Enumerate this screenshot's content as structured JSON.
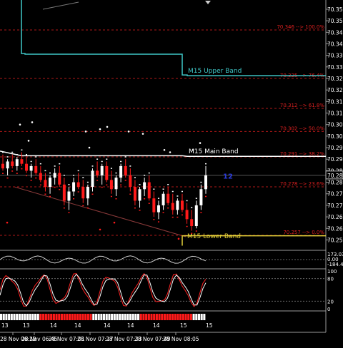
{
  "chart_data": {
    "type": "candlestick",
    "title": "",
    "price_axis": {
      "range": [
        70.2505,
        70.359
      ],
      "ticks": [
        "70.355",
        "70.350",
        "70.345",
        "70.340",
        "70.335",
        "70.330",
        "70.325",
        "70.320",
        "70.315",
        "70.310",
        "70.305",
        "70.300",
        "70.295",
        "70.290",
        "70.285",
        "70.280",
        "70.275",
        "70.270",
        "70.265",
        "70.260",
        "70.255"
      ],
      "current_price": "70.283"
    },
    "time_axis": {
      "labels": [
        "28 Nov 06:29",
        "28 Nov 06:45",
        "28 Nov 07:01",
        "28 Nov 07:17",
        "28 Nov 07:33",
        "28 Nov 07:49",
        "28 Nov 08:05"
      ]
    },
    "hour_labels": [
      "13",
      "13",
      "14",
      "14",
      "14",
      "14",
      "14",
      "15",
      "15"
    ],
    "countdown": "12",
    "bands": [
      {
        "label": "M15 Upper Band",
        "color": "#3fc7c7"
      },
      {
        "label": "M15 Main Band",
        "color": "#ffffff"
      },
      {
        "label": "M15 Lower Band",
        "color": "#e6d23a"
      }
    ],
    "fib_levels": [
      {
        "price": 70.346,
        "label": "70.346 --> 100.0%"
      },
      {
        "price": 70.325,
        "label": "70.325 --> 76.4%"
      },
      {
        "price": 70.312,
        "label": "70.312 --> 61.8%"
      },
      {
        "price": 70.302,
        "label": "70.302 --> 50.0%"
      },
      {
        "price": 70.291,
        "label": "70.291 --> 38.2%"
      },
      {
        "price": 70.278,
        "label": "70.278 --> 23.6%"
      },
      {
        "price": 70.257,
        "label": "70.257 --> 0.0%"
      }
    ],
    "candles": [
      {
        "o": 70.288,
        "h": 70.292,
        "l": 70.285,
        "c": 70.286
      },
      {
        "o": 70.286,
        "h": 70.29,
        "l": 70.283,
        "c": 70.289
      },
      {
        "o": 70.289,
        "h": 70.292,
        "l": 70.286,
        "c": 70.287
      },
      {
        "o": 70.287,
        "h": 70.291,
        "l": 70.285,
        "c": 70.29
      },
      {
        "o": 70.29,
        "h": 70.293,
        "l": 70.287,
        "c": 70.288
      },
      {
        "o": 70.288,
        "h": 70.291,
        "l": 70.284,
        "c": 70.285
      },
      {
        "o": 70.285,
        "h": 70.288,
        "l": 70.282,
        "c": 70.287
      },
      {
        "o": 70.287,
        "h": 70.29,
        "l": 70.283,
        "c": 70.284
      },
      {
        "o": 70.284,
        "h": 70.287,
        "l": 70.28,
        "c": 70.281
      },
      {
        "o": 70.281,
        "h": 70.284,
        "l": 70.276,
        "c": 70.278
      },
      {
        "o": 70.278,
        "h": 70.283,
        "l": 70.275,
        "c": 70.282
      },
      {
        "o": 70.282,
        "h": 70.286,
        "l": 70.279,
        "c": 70.284
      },
      {
        "o": 70.284,
        "h": 70.287,
        "l": 70.278,
        "c": 70.279
      },
      {
        "o": 70.279,
        "h": 70.282,
        "l": 70.27,
        "c": 70.272
      },
      {
        "o": 70.272,
        "h": 70.278,
        "l": 70.268,
        "c": 70.276
      },
      {
        "o": 70.276,
        "h": 70.282,
        "l": 70.274,
        "c": 70.28
      },
      {
        "o": 70.28,
        "h": 70.284,
        "l": 70.277,
        "c": 70.278
      },
      {
        "o": 70.278,
        "h": 70.281,
        "l": 70.271,
        "c": 70.273
      },
      {
        "o": 70.273,
        "h": 70.279,
        "l": 70.27,
        "c": 70.278
      },
      {
        "o": 70.278,
        "h": 70.286,
        "l": 70.276,
        "c": 70.285
      },
      {
        "o": 70.285,
        "h": 70.289,
        "l": 70.282,
        "c": 70.283
      },
      {
        "o": 70.283,
        "h": 70.288,
        "l": 70.279,
        "c": 70.287
      },
      {
        "o": 70.287,
        "h": 70.289,
        "l": 70.28,
        "c": 70.281
      },
      {
        "o": 70.281,
        "h": 70.285,
        "l": 70.275,
        "c": 70.277
      },
      {
        "o": 70.277,
        "h": 70.283,
        "l": 70.274,
        "c": 70.282
      },
      {
        "o": 70.282,
        "h": 70.288,
        "l": 70.28,
        "c": 70.287
      },
      {
        "o": 70.287,
        "h": 70.29,
        "l": 70.282,
        "c": 70.283
      },
      {
        "o": 70.283,
        "h": 70.286,
        "l": 70.276,
        "c": 70.278
      },
      {
        "o": 70.278,
        "h": 70.281,
        "l": 70.27,
        "c": 70.272
      },
      {
        "o": 70.272,
        "h": 70.278,
        "l": 70.269,
        "c": 70.277
      },
      {
        "o": 70.277,
        "h": 70.282,
        "l": 70.274,
        "c": 70.28
      },
      {
        "o": 70.28,
        "h": 70.283,
        "l": 70.272,
        "c": 70.273
      },
      {
        "o": 70.273,
        "h": 70.276,
        "l": 70.265,
        "c": 70.267
      },
      {
        "o": 70.267,
        "h": 70.272,
        "l": 70.264,
        "c": 70.27
      },
      {
        "o": 70.27,
        "h": 70.276,
        "l": 70.268,
        "c": 70.275
      },
      {
        "o": 70.275,
        "h": 70.278,
        "l": 70.27,
        "c": 70.271
      },
      {
        "o": 70.271,
        "h": 70.275,
        "l": 70.266,
        "c": 70.268
      },
      {
        "o": 70.268,
        "h": 70.273,
        "l": 70.266,
        "c": 70.272
      },
      {
        "o": 70.272,
        "h": 70.275,
        "l": 70.267,
        "c": 70.268
      },
      {
        "o": 70.268,
        "h": 70.271,
        "l": 70.262,
        "c": 70.264
      },
      {
        "o": 70.264,
        "h": 70.268,
        "l": 70.259,
        "c": 70.261
      },
      {
        "o": 70.261,
        "h": 70.272,
        "l": 70.26,
        "c": 70.27
      },
      {
        "o": 70.27,
        "h": 70.279,
        "l": 70.268,
        "c": 70.277
      },
      {
        "o": 70.277,
        "h": 70.287,
        "l": 70.275,
        "c": 70.283
      }
    ],
    "cci": {
      "axis_labels": [
        "173.039",
        "0.00",
        "-184.43"
      ]
    },
    "stochastic": {
      "axis_labels": [
        "100",
        "80",
        "20",
        "0"
      ]
    },
    "histogram": {
      "blocks": [
        {
          "color": "#ffffff",
          "count": 15
        },
        {
          "color": "#ff1a1a",
          "count": 20
        },
        {
          "color": "#ffffff",
          "count": 18
        },
        {
          "color": "#ff1a1a",
          "count": 20
        },
        {
          "color": "#ffffff",
          "count": 5
        }
      ]
    }
  }
}
